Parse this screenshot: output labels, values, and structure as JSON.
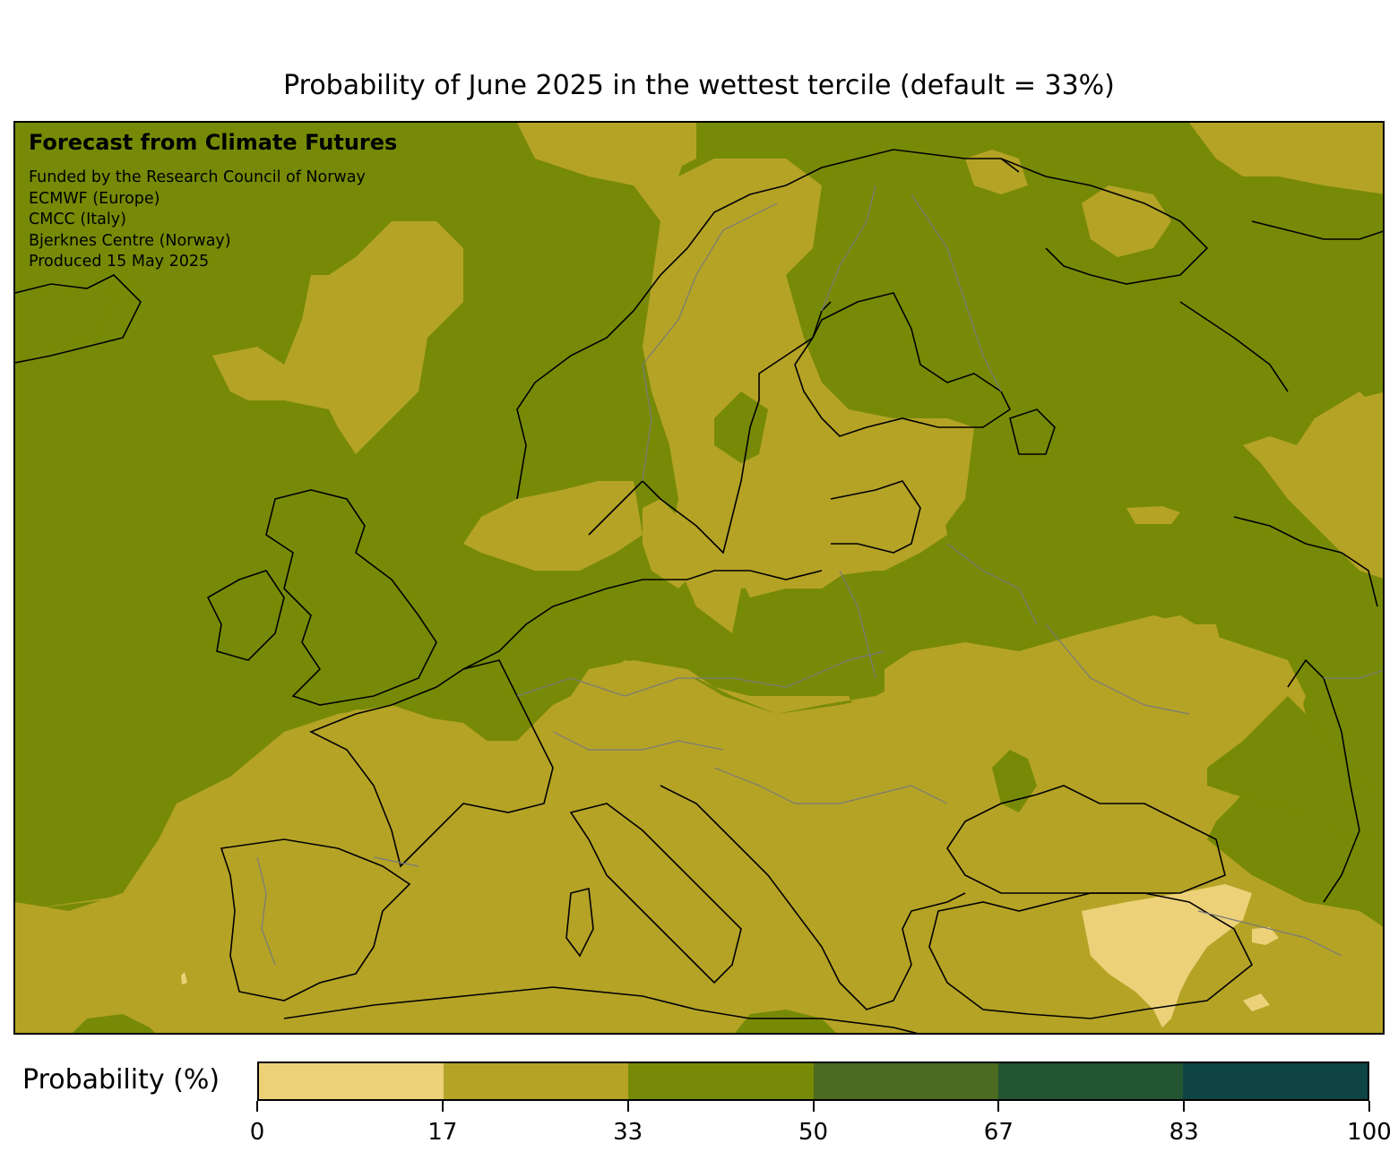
{
  "title": "Probability of June 2025 in the wettest tercile (default = 33%)",
  "credit": {
    "heading": "Forecast from Climate Futures",
    "lines": [
      "Funded by the Research Council of Norway",
      "ECMWF (Europe)",
      "CMCC (Italy)",
      "Bjerknes Centre (Norway)",
      "Produced 15 May 2025"
    ]
  },
  "colorbar": {
    "label": "Probability (%)",
    "ticks": [
      "0",
      "17",
      "33",
      "50",
      "67",
      "83",
      "100"
    ],
    "tick_values": [
      0,
      17,
      33,
      50,
      67,
      83,
      100
    ],
    "colors": [
      "#edd178",
      "#b5a326",
      "#778a07",
      "#4a6b20",
      "#245533",
      "#0e4444"
    ]
  },
  "map": {
    "region": "Europe",
    "dominant_category_color": "#778a07"
  }
}
